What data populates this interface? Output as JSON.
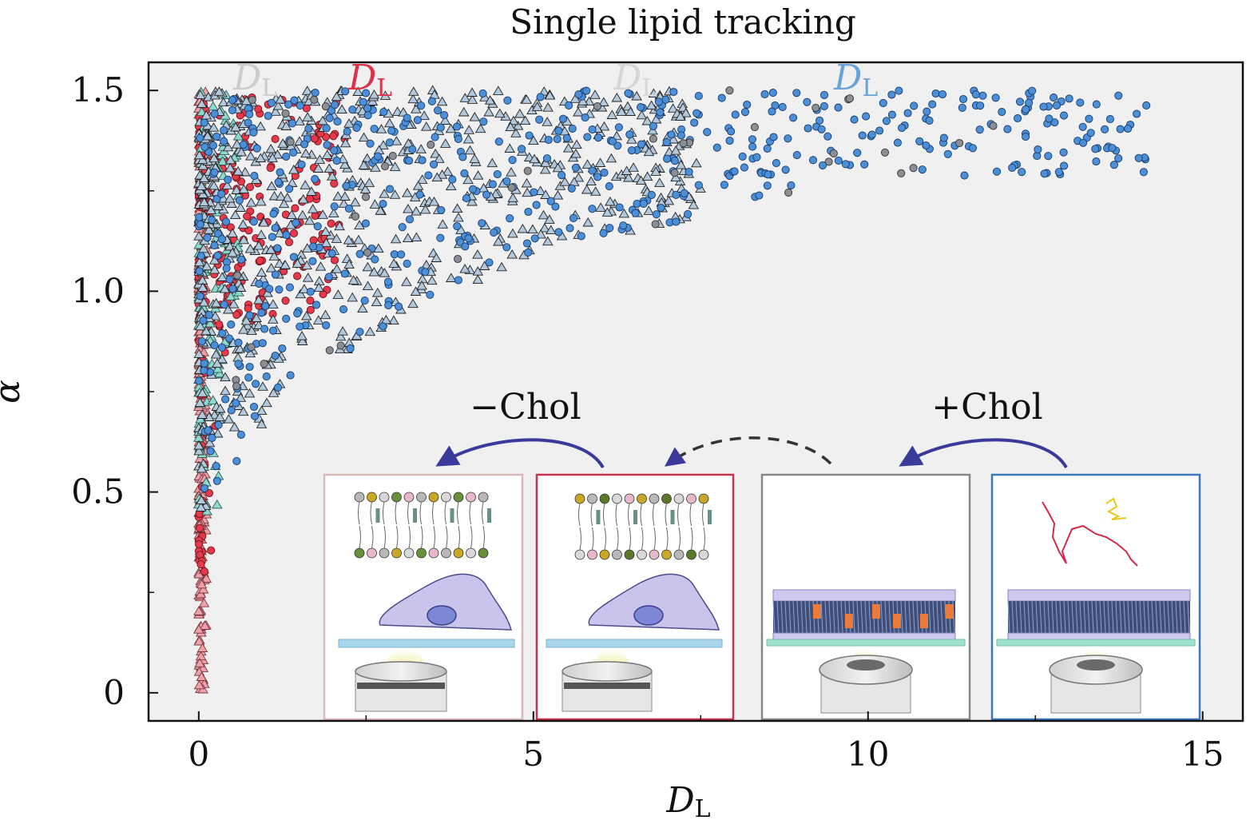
{
  "chart_data": {
    "type": "scatter",
    "title": "Single lipid tracking",
    "xlabel": {
      "main": "D",
      "sub": "L"
    },
    "ylabel": "α",
    "xlim": [
      -0.75,
      15.6
    ],
    "ylim": [
      -0.07,
      1.57
    ],
    "xticks": [
      0,
      5,
      10,
      15
    ],
    "xtick_labels": [
      "0",
      "5",
      "10",
      "15"
    ],
    "yticks": [
      0,
      0.5,
      1.0,
      1.5
    ],
    "ytick_labels": [
      "0",
      "0.5",
      "1.0",
      "1.5"
    ],
    "grid": false,
    "background": "#f0f0f0",
    "legend_labels": [
      {
        "main": "D",
        "sub": "L",
        "color": "#cccccc",
        "partial": true
      },
      {
        "main": "D",
        "sub": "L",
        "color": "#d9324a"
      },
      {
        "main": "D",
        "sub": "L",
        "color": "#d6d6d6"
      },
      {
        "main": "D",
        "sub": "L",
        "color": "#6aa3d8"
      }
    ],
    "series": [
      {
        "marker": "triangle",
        "color": "#f0a0a8",
        "edge": "#7a3a40",
        "cluster": "near-zero",
        "x_range": [
          0,
          0.15
        ],
        "y_range": [
          0,
          1.5
        ],
        "count": 260
      },
      {
        "marker": "circle",
        "color": "#e8394a",
        "edge": "#6a1420",
        "cluster": "near-zero",
        "x_range": [
          0,
          2.2
        ],
        "y_range": [
          0.3,
          1.5
        ],
        "count": 240
      },
      {
        "marker": "triangle",
        "color": "#8fd8cf",
        "edge": "#2a5a56",
        "cluster": "near-zero",
        "x_range": [
          0,
          0.6
        ],
        "y_range": [
          0.45,
          1.5
        ],
        "count": 110
      },
      {
        "marker": "triangle",
        "color": "#b2c8dc",
        "edge": "#222222",
        "cluster": "wedge",
        "x_range": [
          0,
          7.5
        ],
        "y_range": [
          0.45,
          1.5
        ],
        "count": 760
      },
      {
        "marker": "circle",
        "color": "#4a8fd8",
        "edge": "#1a3a66",
        "cluster": "wedge",
        "x_range": [
          0,
          14.2
        ],
        "y_range": [
          0.45,
          1.5
        ],
        "count": 520
      },
      {
        "marker": "circle",
        "color": "#8a8f96",
        "edge": "#333333",
        "cluster": "wedge",
        "x_range": [
          0.5,
          12
        ],
        "y_range": [
          0.55,
          1.5
        ],
        "count": 40
      }
    ],
    "annotations": [
      {
        "text": "−Chol",
        "color": "#111111"
      },
      {
        "text": "+Chol",
        "color": "#111111"
      }
    ],
    "insets": [
      {
        "name": "live-cell-depleted",
        "frame_color": "#d9b8bc"
      },
      {
        "name": "live-cell-control",
        "frame_color": "#c8324a"
      },
      {
        "name": "supported-bilayer-chol",
        "frame_color": "#888888"
      },
      {
        "name": "supported-bilayer",
        "frame_color": "#3a78b8"
      }
    ],
    "arrow_color": "#3a3a9a"
  }
}
